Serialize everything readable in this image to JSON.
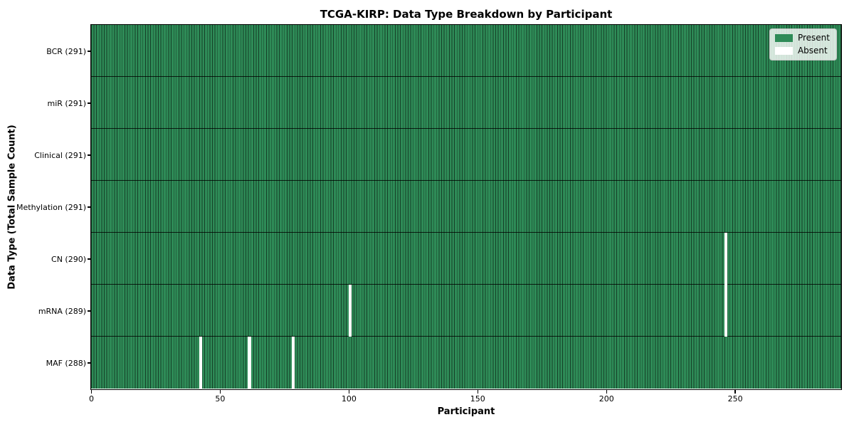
{
  "chart_data": {
    "type": "heatmap",
    "title": "TCGA-KIRP: Data Type Breakdown by Participant",
    "xlabel": "Participant",
    "ylabel": "Data Type (Total Sample Count)",
    "n_participants": 291,
    "x_range": [
      0,
      291
    ],
    "x_ticks": [
      0,
      50,
      100,
      150,
      200,
      250
    ],
    "grid": false,
    "rows": [
      {
        "data_type": "BCR",
        "label": "BCR (291)",
        "total_samples": 291,
        "absent_participants": []
      },
      {
        "data_type": "miR",
        "label": "miR (291)",
        "total_samples": 291,
        "absent_participants": []
      },
      {
        "data_type": "Clinical",
        "label": "Clinical (291)",
        "total_samples": 291,
        "absent_participants": []
      },
      {
        "data_type": "Methylation",
        "label": "Methylation (291)",
        "total_samples": 291,
        "absent_participants": []
      },
      {
        "data_type": "CN",
        "label": "CN (290)",
        "total_samples": 290,
        "absent_participants": [
          246
        ]
      },
      {
        "data_type": "mRNA",
        "label": "mRNA (289)",
        "total_samples": 289,
        "absent_participants": [
          100,
          246
        ]
      },
      {
        "data_type": "MAF",
        "label": "MAF (288)",
        "total_samples": 288,
        "absent_participants": [
          42,
          61,
          78
        ]
      }
    ],
    "legend": {
      "position": "upper right",
      "entries": [
        {
          "label": "Present",
          "color": "#2e8b57"
        },
        {
          "label": "Absent",
          "color": "#ffffff"
        }
      ]
    },
    "colors": {
      "present": "#2e8b57",
      "absent": "#ffffff",
      "bar_edge": "rgba(0,0,0,0.55)",
      "row_divider": "rgba(0,0,0,0.8)",
      "axis": "#000000"
    }
  }
}
